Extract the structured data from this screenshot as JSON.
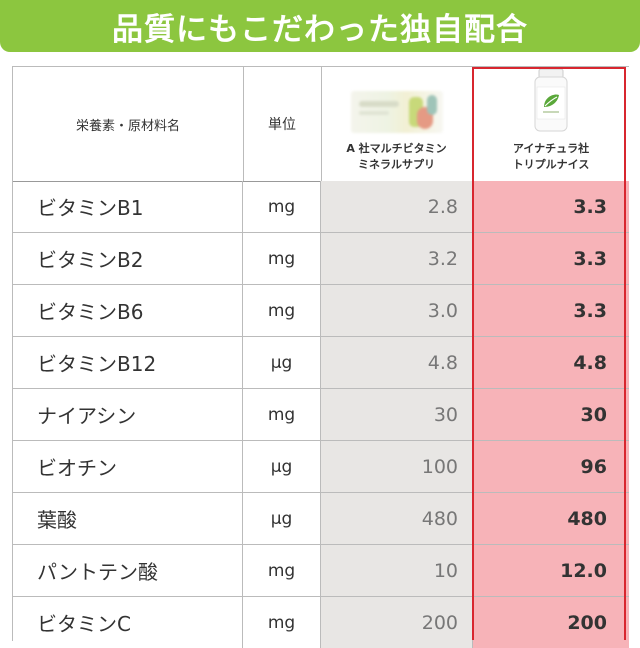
{
  "banner": {
    "title": "品質にもこだわった独自配合"
  },
  "header": {
    "nutrient_label": "栄養素・原材料名",
    "unit_label": "単位",
    "competitor_line1": "A 社マルチビタミン",
    "competitor_line2": "ミネラルサプリ",
    "product_line1": "アイナチュラ社",
    "product_line2": "トリプルナイス"
  },
  "rows": [
    {
      "name": "ビタミンB1",
      "unit": "mg",
      "competitor": "2.8",
      "product": "3.3"
    },
    {
      "name": "ビタミンB2",
      "unit": "mg",
      "competitor": "3.2",
      "product": "3.3"
    },
    {
      "name": "ビタミンB6",
      "unit": "mg",
      "competitor": "3.0",
      "product": "3.3"
    },
    {
      "name": "ビタミンB12",
      "unit": "μg",
      "competitor": "4.8",
      "product": "4.8"
    },
    {
      "name": "ナイアシン",
      "unit": "mg",
      "competitor": "30",
      "product": "30"
    },
    {
      "name": "ビオチン",
      "unit": "μg",
      "competitor": "100",
      "product": "96"
    },
    {
      "name": "葉酸",
      "unit": "μg",
      "competitor": "480",
      "product": "480"
    },
    {
      "name": "パントテン酸",
      "unit": "mg",
      "competitor": "10",
      "product": "12.0"
    },
    {
      "name": "ビタミンC",
      "unit": "mg",
      "competitor": "200",
      "product": "200"
    }
  ],
  "colors": {
    "banner": "#8cc63f",
    "competitor_bg": "#e8e6e4",
    "product_bg": "#f7b3b8",
    "highlight_border": "#d8262f"
  },
  "icons": {
    "competitor_image": "blurred-product-package-image",
    "product_image": "supplement-bottle-image"
  }
}
